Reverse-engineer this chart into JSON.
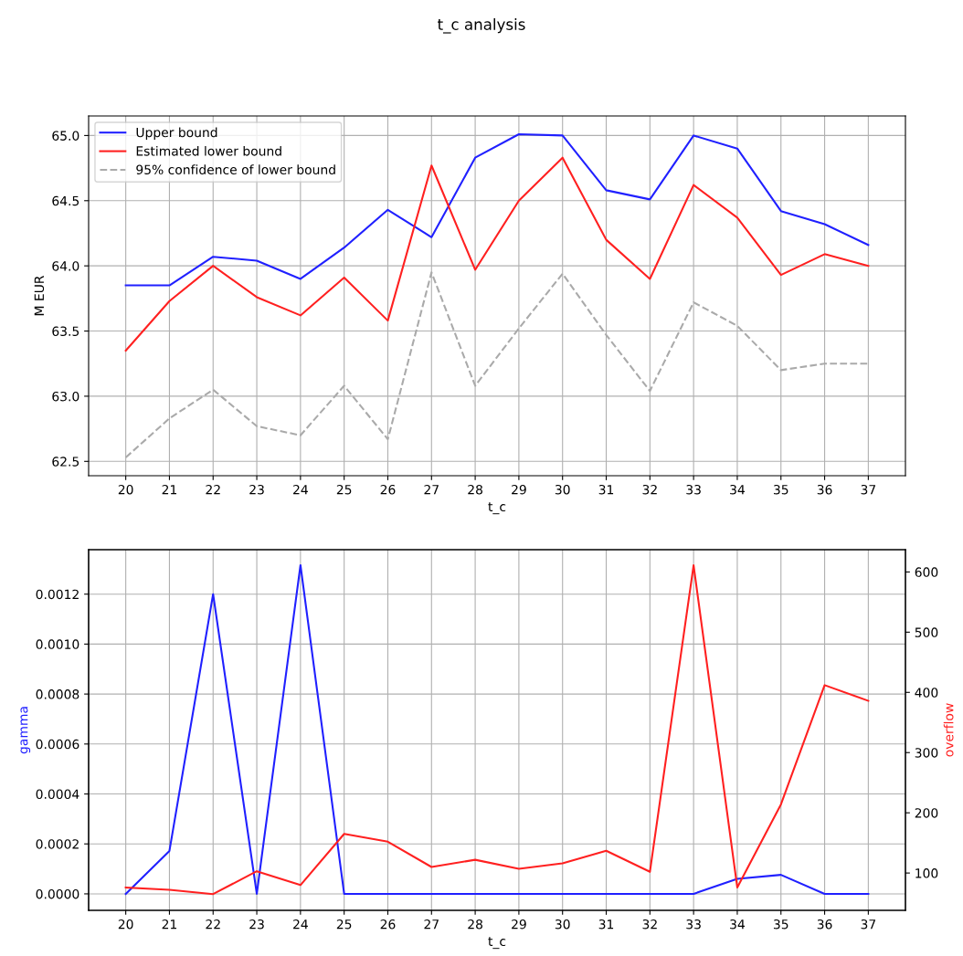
{
  "chart_data": [
    {
      "type": "line",
      "title": "t_c analysis",
      "xlabel": "t_c",
      "ylabel": "M EUR",
      "x": [
        20,
        21,
        22,
        23,
        24,
        25,
        26,
        27,
        28,
        29,
        30,
        31,
        32,
        33,
        34,
        35,
        36,
        37
      ],
      "xlim": [
        19.15,
        37.85
      ],
      "xticks": [
        20,
        21,
        22,
        23,
        24,
        25,
        26,
        27,
        28,
        29,
        30,
        31,
        32,
        33,
        34,
        35,
        36,
        37
      ],
      "ylim": [
        62.39,
        65.15
      ],
      "yticks": [
        {
          "value": 62.5,
          "label": "62.5"
        },
        {
          "value": 63.0,
          "label": "63.0"
        },
        {
          "value": 63.5,
          "label": "63.5"
        },
        {
          "value": 64.0,
          "label": "64.0"
        },
        {
          "value": 64.5,
          "label": "64.5"
        },
        {
          "value": 65.0,
          "label": "65.0"
        }
      ],
      "grid": true,
      "legend": "top left",
      "series": [
        {
          "name": "Upper bound",
          "color": "#2020ff",
          "line_style": "solid",
          "values": [
            63.85,
            63.85,
            64.07,
            64.04,
            63.9,
            64.14,
            64.43,
            64.22,
            64.83,
            65.01,
            65.0,
            64.58,
            64.51,
            65.0,
            64.9,
            64.42,
            64.32,
            64.16
          ]
        },
        {
          "name": "Estimated lower bound",
          "color": "#ff2020",
          "line_style": "solid",
          "values": [
            63.35,
            63.73,
            64.0,
            63.76,
            63.62,
            63.91,
            63.58,
            64.77,
            63.97,
            64.5,
            64.83,
            64.2,
            63.9,
            64.62,
            64.37,
            63.93,
            64.09,
            64.0
          ]
        },
        {
          "name": "95% confidence of lower bound",
          "color": "#aaaaaa",
          "line_style": "dashed",
          "values": [
            62.53,
            62.83,
            63.05,
            62.77,
            62.7,
            63.08,
            62.67,
            63.95,
            63.08,
            63.52,
            63.94,
            63.47,
            63.04,
            63.72,
            63.54,
            63.2,
            63.25,
            63.25
          ]
        }
      ]
    },
    {
      "type": "line",
      "xlabel": "t_c",
      "ylabel": "gamma",
      "y2label": "overflow",
      "x": [
        20,
        21,
        22,
        23,
        24,
        25,
        26,
        27,
        28,
        29,
        30,
        31,
        32,
        33,
        34,
        35,
        36,
        37
      ],
      "xlim": [
        19.15,
        37.85
      ],
      "xticks": [
        20,
        21,
        22,
        23,
        24,
        25,
        26,
        27,
        28,
        29,
        30,
        31,
        32,
        33,
        34,
        35,
        36,
        37
      ],
      "ylim": [
        -6.6e-05,
        0.001378
      ],
      "yticks": [
        {
          "value": 0,
          "label": "0.0000"
        },
        {
          "value": 0.0002,
          "label": "0.0002"
        },
        {
          "value": 0.0004,
          "label": "0.0004"
        },
        {
          "value": 0.0006,
          "label": "0.0006"
        },
        {
          "value": 0.0008,
          "label": "0.0008"
        },
        {
          "value": 0.001,
          "label": "0.0010"
        },
        {
          "value": 0.0012,
          "label": "0.0012"
        }
      ],
      "y2lim": [
        38,
        637
      ],
      "y2ticks": [
        100,
        200,
        300,
        400,
        500,
        600
      ],
      "grid": true,
      "series": [
        {
          "color": "#2020ff",
          "values": [
            0,
            0.000172,
            0.0012,
            0,
            0.001316,
            0,
            0,
            0,
            0,
            0,
            0,
            0,
            0,
            0,
            6e-05,
            7.6e-05,
            0,
            0
          ]
        },
        {
          "color": "#ff2020",
          "axis": "y2",
          "values": [
            76,
            72,
            65,
            103,
            80,
            165,
            152,
            110,
            122,
            107,
            116,
            137,
            102,
            611,
            76,
            214,
            412,
            386
          ]
        }
      ]
    }
  ]
}
